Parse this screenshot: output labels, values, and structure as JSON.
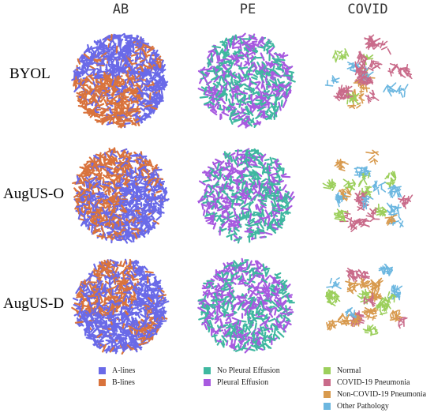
{
  "chart_data": {
    "type": "scatter",
    "description_kind": "t-SNE embeddings grid",
    "columns": [
      "AB",
      "PE",
      "COVID"
    ],
    "rows": [
      "BYOL",
      "AugUS-O",
      "AugUS-D"
    ],
    "legends": {
      "AB": [
        {
          "name": "A-lines",
          "color": "#6a6ae8"
        },
        {
          "name": "B-lines",
          "color": "#d9733c"
        }
      ],
      "PE": [
        {
          "name": "No Pleural Effusion",
          "color": "#3fb8a0"
        },
        {
          "name": "Pleural Effusion",
          "color": "#a85ae0"
        }
      ],
      "COVID": [
        {
          "name": "Normal",
          "color": "#9ccf5c"
        },
        {
          "name": "COVID-19 Pneumonia",
          "color": "#c96b8a"
        },
        {
          "name": "Non-COVID-19 Pneumonia",
          "color": "#d89a4e"
        },
        {
          "name": "Other Pathology",
          "color": "#6cb7e0"
        }
      ]
    }
  }
}
